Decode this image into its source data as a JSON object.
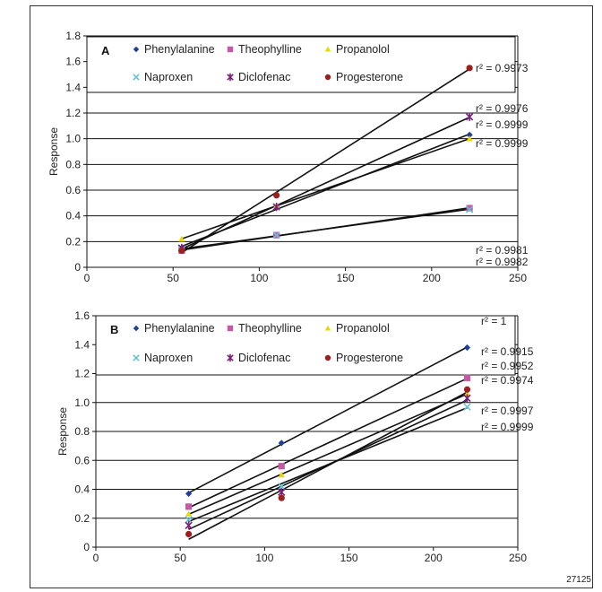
{
  "figure_id": "27125",
  "chart_data": [
    {
      "panel": "A",
      "type": "scatter",
      "ylabel": "Response",
      "xlabel": "",
      "xlim": [
        0,
        250
      ],
      "ylim": [
        0,
        1.8
      ],
      "xticks": [
        "0",
        "50",
        "100",
        "150",
        "200",
        "250"
      ],
      "yticks": [
        "0",
        "0.2",
        "0.4",
        "0.6",
        "0.8",
        "1.0",
        "1.2",
        "1.4",
        "1.6",
        "1.8"
      ],
      "legend_position": "top",
      "series": [
        {
          "name": "Phenylalanine",
          "color": "#1f3f9a",
          "marker": "diamond",
          "x": [
            55,
            110,
            222
          ],
          "y": [
            0.15,
            0.47,
            1.03
          ],
          "r2_label": "r² = 0.9999"
        },
        {
          "name": "Theophylline",
          "color": "#c45aa6",
          "marker": "square",
          "x": [
            55,
            110,
            222
          ],
          "y": [
            0.13,
            0.25,
            0.46
          ],
          "r2_label": "r² = 0.9981"
        },
        {
          "name": "Propanolol",
          "color": "#e8d800",
          "marker": "triangle",
          "x": [
            55,
            110,
            222
          ],
          "y": [
            0.22,
            0.48,
            1.0
          ],
          "r2_label": "r² = 0.9999"
        },
        {
          "name": "Naproxen",
          "color": "#5fc3d4",
          "marker": "x",
          "x": [
            55,
            110,
            222
          ],
          "y": [
            0.14,
            0.25,
            0.45
          ],
          "r2_label": "r² = 0.9982"
        },
        {
          "name": "Diclofenac",
          "color": "#7a1f7a",
          "marker": "star",
          "x": [
            55,
            110,
            222
          ],
          "y": [
            0.15,
            0.47,
            1.17
          ],
          "r2_label": "r² = 0.9976"
        },
        {
          "name": "Progesterone",
          "color": "#9e1d1d",
          "marker": "circle",
          "x": [
            55,
            110,
            222
          ],
          "y": [
            0.13,
            0.56,
            1.55
          ],
          "r2_label": "r² = 0.9973"
        }
      ]
    },
    {
      "panel": "B",
      "type": "scatter",
      "ylabel": "Response",
      "xlabel": "",
      "xlim": [
        0,
        250
      ],
      "ylim": [
        0,
        1.6
      ],
      "xticks": [
        "0",
        "50",
        "100",
        "150",
        "200",
        "250"
      ],
      "yticks": [
        "0",
        "0.2",
        "0.4",
        "0.6",
        "0.8",
        "1.0",
        "1.2",
        "1.4",
        "1.6"
      ],
      "legend_position": "top",
      "series": [
        {
          "name": "Phenylalanine",
          "color": "#1f3f9a",
          "marker": "diamond",
          "x": [
            55,
            110,
            220
          ],
          "y": [
            0.37,
            0.72,
            1.38
          ],
          "r2_label": "r² = 1"
        },
        {
          "name": "Theophylline",
          "color": "#c45aa6",
          "marker": "square",
          "x": [
            55,
            110,
            220
          ],
          "y": [
            0.28,
            0.56,
            1.17
          ],
          "r2_label": "r² = 0.9915"
        },
        {
          "name": "Propanolol",
          "color": "#e8d800",
          "marker": "triangle",
          "x": [
            55,
            110,
            220
          ],
          "y": [
            0.23,
            0.5,
            1.06
          ],
          "r2_label": "r² = 0.9952"
        },
        {
          "name": "Naproxen",
          "color": "#5fc3d4",
          "marker": "x",
          "x": [
            55,
            110,
            220
          ],
          "y": [
            0.19,
            0.42,
            0.97
          ],
          "r2_label": "r² = 0.9997"
        },
        {
          "name": "Diclofenac",
          "color": "#7a1f7a",
          "marker": "star",
          "x": [
            55,
            110,
            220
          ],
          "y": [
            0.15,
            0.38,
            1.03
          ],
          "r2_label": "r² = 0.9999"
        },
        {
          "name": "Progesterone",
          "color": "#9e1d1d",
          "marker": "circle",
          "x": [
            55,
            110,
            220
          ],
          "y": [
            0.09,
            0.34,
            1.09
          ],
          "r2_label": "r² = 0.9974"
        }
      ]
    }
  ]
}
